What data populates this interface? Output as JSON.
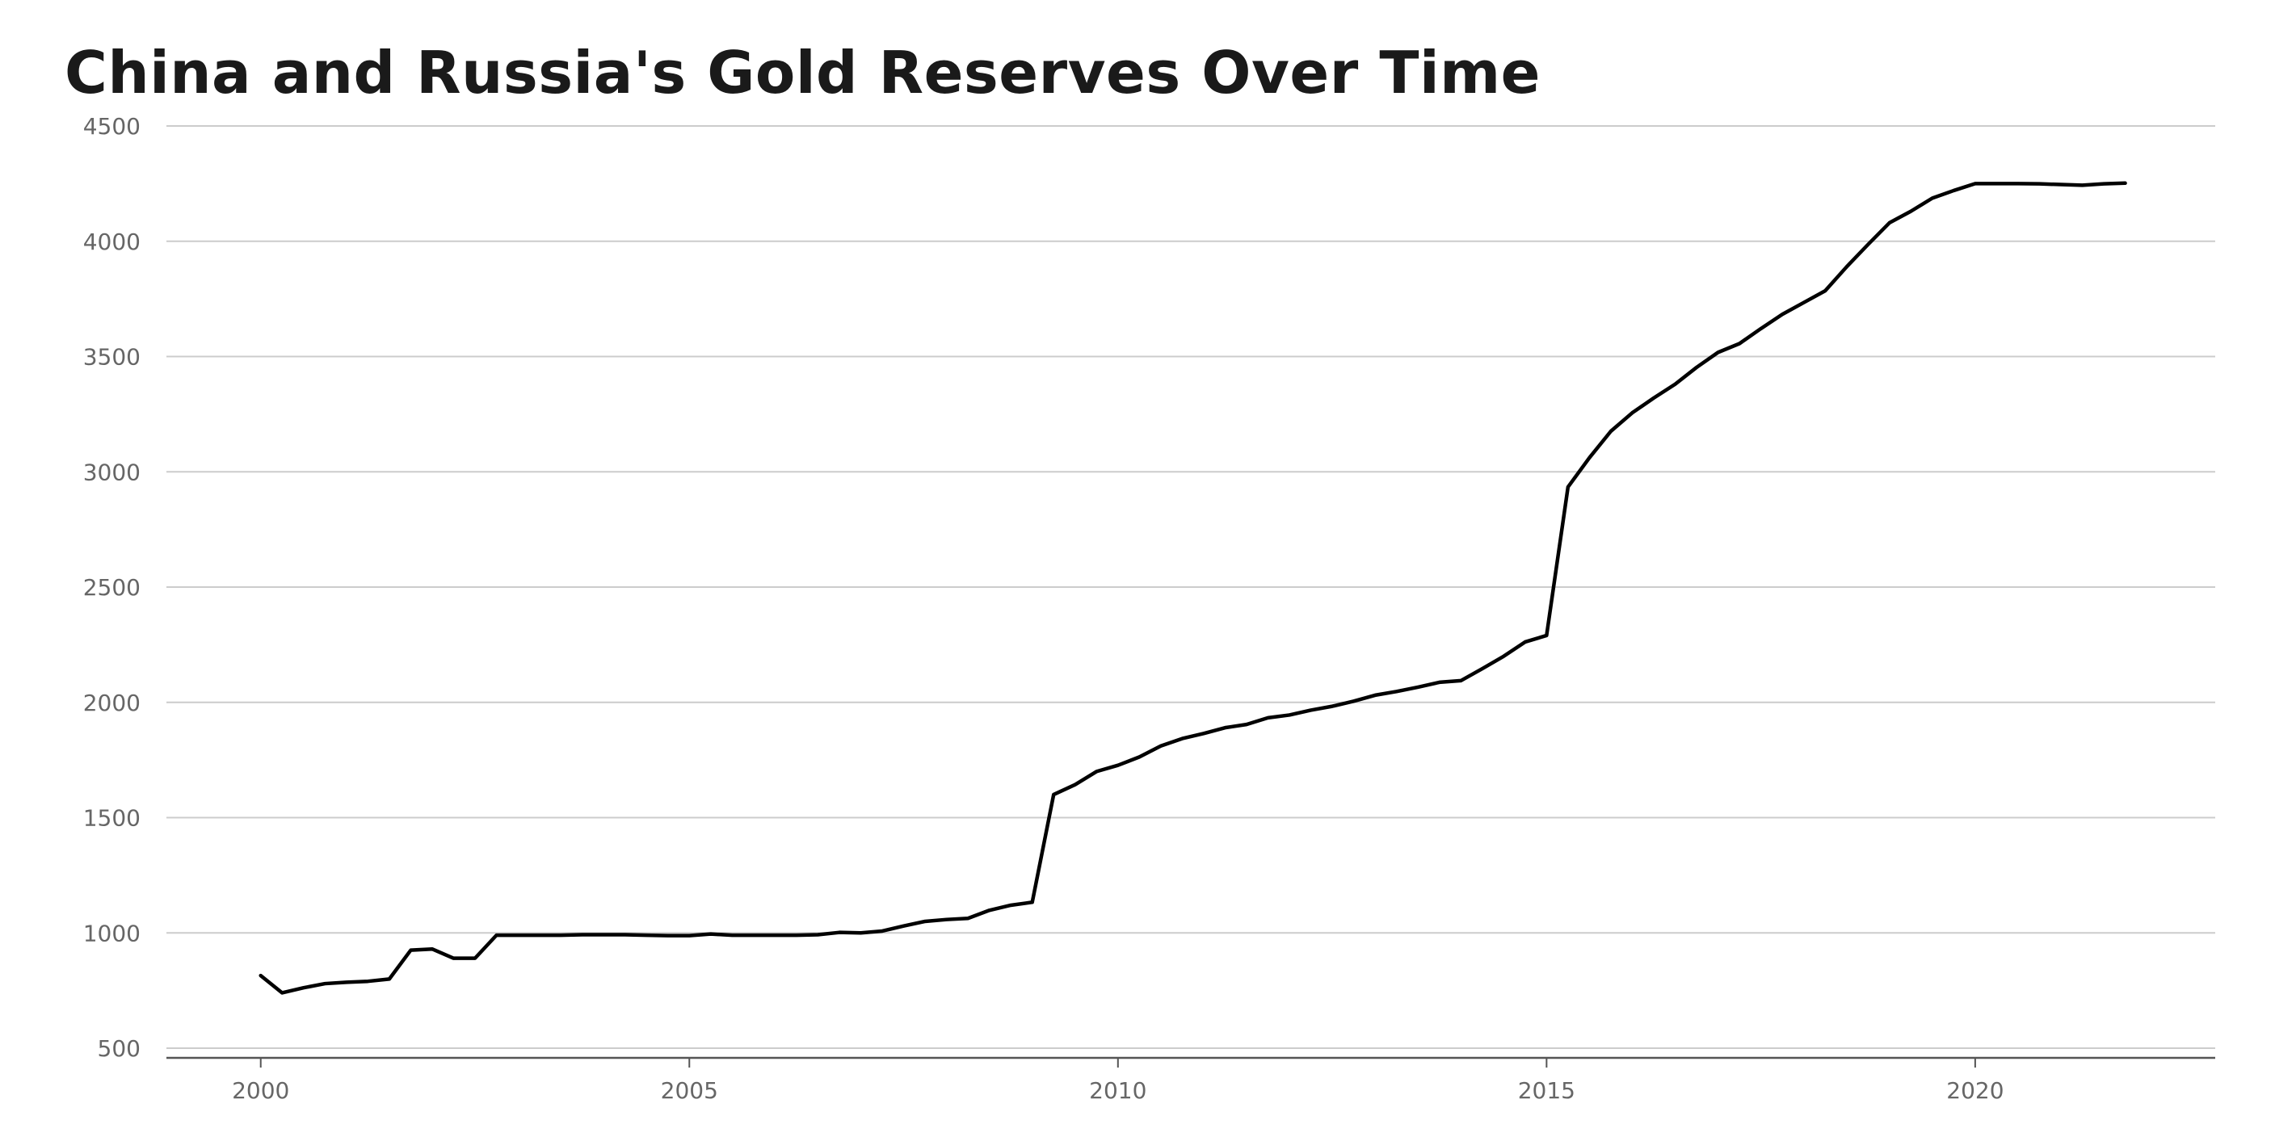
{
  "chart_data": {
    "type": "line",
    "title": "China and Russia's Gold Reserves Over Time",
    "xlabel": "",
    "ylabel": "",
    "xlim": [
      1998.9,
      2022.8
    ],
    "ylim": [
      480,
      4500
    ],
    "grid": true,
    "x_ticks": [
      2000,
      2005,
      2010,
      2015,
      2020
    ],
    "y_ticks": [
      500,
      1000,
      1500,
      2000,
      2500,
      3000,
      3500,
      4000,
      4500
    ],
    "series": [
      {
        "name": "",
        "color": "#000000",
        "x": [
          2000.0,
          2000.25,
          2000.5,
          2000.75,
          2001.0,
          2001.25,
          2001.5,
          2001.75,
          2002.0,
          2002.25,
          2002.5,
          2002.75,
          2003.0,
          2003.25,
          2003.5,
          2003.75,
          2004.0,
          2004.25,
          2004.5,
          2004.75,
          2005.0,
          2005.25,
          2005.5,
          2005.75,
          2006.0,
          2006.25,
          2006.5,
          2006.75,
          2007.0,
          2007.25,
          2007.5,
          2007.75,
          2008.0,
          2008.25,
          2008.5,
          2008.75,
          2009.0,
          2009.25,
          2009.5,
          2009.75,
          2010.0,
          2010.25,
          2010.5,
          2010.75,
          2011.0,
          2011.25,
          2011.5,
          2011.75,
          2012.0,
          2012.25,
          2012.5,
          2012.75,
          2013.0,
          2013.25,
          2013.5,
          2013.75,
          2014.0,
          2014.25,
          2014.5,
          2014.75,
          2015.0,
          2015.25,
          2015.5,
          2015.75,
          2016.0,
          2016.25,
          2016.5,
          2016.75,
          2017.0,
          2017.25,
          2017.5,
          2017.75,
          2018.0,
          2018.25,
          2018.5,
          2018.75,
          2019.0,
          2019.25,
          2019.5,
          2019.75,
          2020.0,
          2020.25,
          2020.5,
          2020.75,
          2021.0,
          2021.25,
          2021.5,
          2021.75
        ],
        "y": [
          815,
          740,
          762,
          780,
          786,
          790,
          800,
          925,
          930,
          890,
          890,
          990,
          990,
          990,
          990,
          992,
          992,
          992,
          990,
          988,
          988,
          995,
          990,
          990,
          990,
          990,
          992,
          1002,
          1000,
          1008,
          1030,
          1050,
          1058,
          1063,
          1098,
          1120,
          1133,
          1600,
          1643,
          1700,
          1727,
          1763,
          1811,
          1843,
          1865,
          1890,
          1904,
          1933,
          1945,
          1966,
          1983,
          2005,
          2031,
          2047,
          2066,
          2087,
          2094,
          2146,
          2200,
          2262,
          2290,
          2934,
          3061,
          3176,
          3256,
          3320,
          3380,
          3453,
          3518,
          3556,
          3621,
          3683,
          3734,
          3785,
          3889,
          3986,
          4080,
          4130,
          4187,
          4220,
          4250,
          4250,
          4250,
          4249,
          4246,
          4243,
          4249,
          4252
        ]
      }
    ]
  }
}
